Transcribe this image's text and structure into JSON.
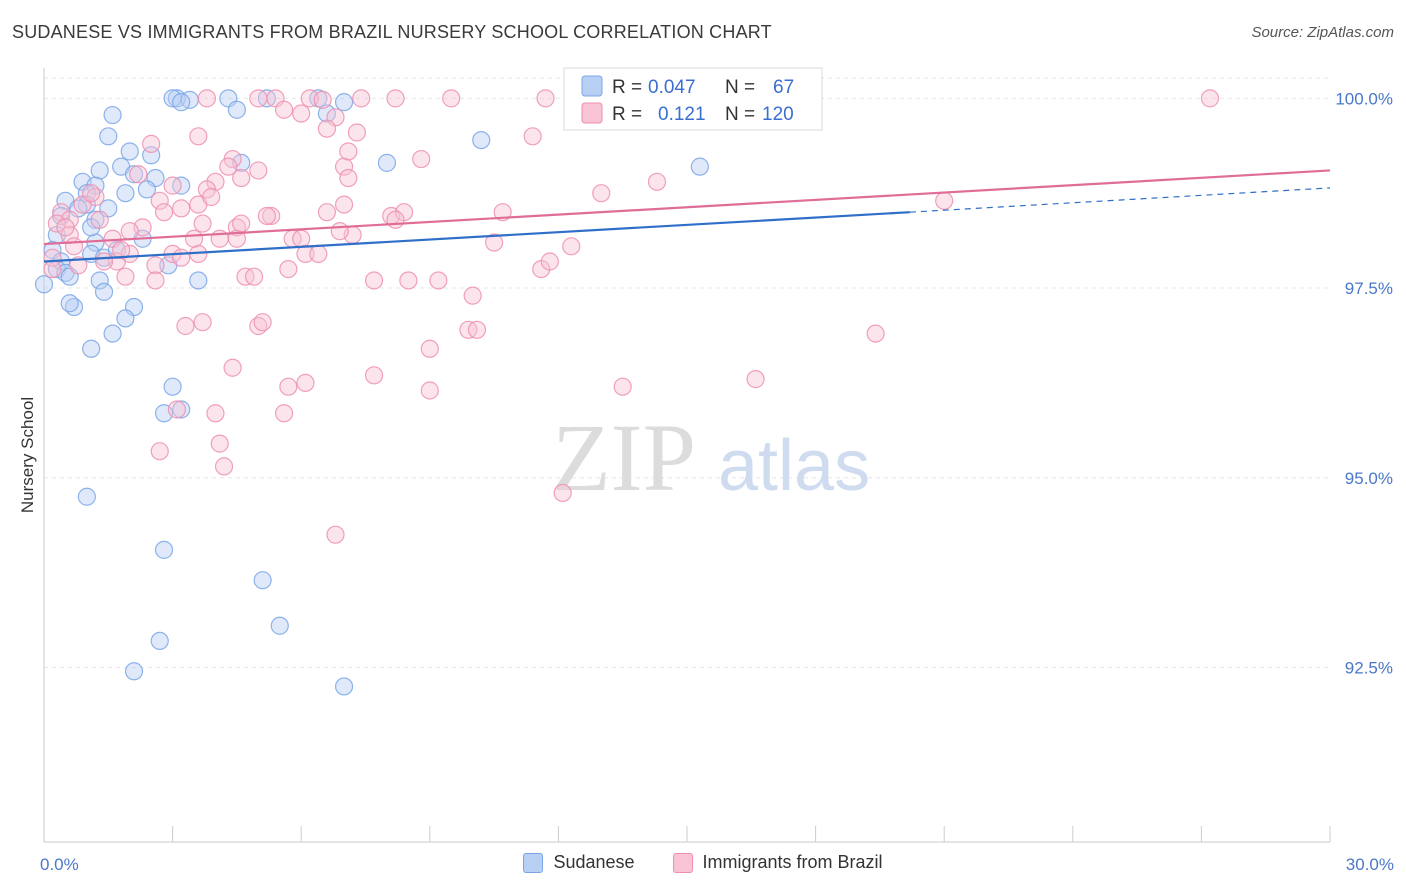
{
  "header": {
    "title": "SUDANESE VS IMMIGRANTS FROM BRAZIL NURSERY SCHOOL CORRELATION CHART",
    "source": "Source: ZipAtlas.com"
  },
  "watermark": {
    "zip": "ZIP",
    "atlas": "atlas"
  },
  "chart_data": {
    "type": "scatter",
    "title": "SUDANESE VS IMMIGRANTS FROM BRAZIL NURSERY SCHOOL CORRELATION CHART",
    "ylabel": "Nursery School",
    "xlabel": "",
    "xlim": [
      0,
      30
    ],
    "ylim": [
      90.2,
      100.4
    ],
    "x_ticks": [
      {
        "value": 0,
        "label": "0.0%"
      },
      {
        "value": 30,
        "label": "30.0%"
      }
    ],
    "y_ticks": [
      {
        "value": 100.0,
        "label": "100.0%"
      },
      {
        "value": 97.5,
        "label": "97.5%"
      },
      {
        "value": 95.0,
        "label": "95.0%"
      },
      {
        "value": 92.5,
        "label": "92.5%"
      }
    ],
    "grid": true,
    "legend_position": "top-center",
    "stats": [
      {
        "r_label": "R =",
        "r": "0.047",
        "n_label": "N =",
        "n": "67"
      },
      {
        "r_label": "R =",
        "r": "0.121",
        "n_label": "N =",
        "n": "120"
      }
    ],
    "series": [
      {
        "name": "Sudanese",
        "color": "#7aa6e8",
        "fill": "#b7cff3",
        "trend_color": "#2f6fc9",
        "trend": {
          "x0": 0,
          "y0": 97.85,
          "x1": 20.2,
          "y1": 98.5,
          "dash_x1": 30,
          "dash_y1": 98.82
        },
        "points": [
          [
            3.1,
            100.0
          ],
          [
            3.0,
            100.0
          ],
          [
            3.4,
            99.98
          ],
          [
            3.2,
            99.95
          ],
          [
            4.3,
            100.0
          ],
          [
            4.5,
            99.85
          ],
          [
            5.2,
            100.0
          ],
          [
            6.4,
            100.0
          ],
          [
            7.0,
            99.95
          ],
          [
            6.6,
            99.8
          ],
          [
            1.6,
            99.78
          ],
          [
            1.5,
            99.5
          ],
          [
            2.0,
            99.3
          ],
          [
            2.5,
            99.25
          ],
          [
            1.8,
            99.1
          ],
          [
            2.6,
            98.95
          ],
          [
            1.3,
            99.05
          ],
          [
            0.9,
            98.9
          ],
          [
            1.2,
            98.85
          ],
          [
            2.4,
            98.8
          ],
          [
            1.0,
            98.75
          ],
          [
            0.5,
            98.65
          ],
          [
            1.0,
            98.6
          ],
          [
            0.8,
            98.55
          ],
          [
            1.5,
            98.55
          ],
          [
            1.9,
            98.75
          ],
          [
            0.4,
            98.45
          ],
          [
            1.2,
            98.4
          ],
          [
            0.3,
            98.2
          ],
          [
            1.2,
            98.1
          ],
          [
            2.3,
            98.15
          ],
          [
            0.2,
            98.0
          ],
          [
            1.1,
            97.95
          ],
          [
            0.4,
            97.85
          ],
          [
            1.4,
            97.9
          ],
          [
            0.3,
            97.75
          ],
          [
            0.5,
            97.7
          ],
          [
            0.6,
            97.65
          ],
          [
            1.3,
            97.6
          ],
          [
            0.0,
            97.55
          ],
          [
            1.4,
            97.45
          ],
          [
            0.7,
            97.25
          ],
          [
            0.6,
            97.3
          ],
          [
            2.1,
            97.25
          ],
          [
            1.9,
            97.1
          ],
          [
            1.6,
            96.9
          ],
          [
            1.1,
            96.7
          ],
          [
            3.0,
            96.2
          ],
          [
            2.8,
            95.85
          ],
          [
            3.2,
            95.9
          ],
          [
            1.0,
            94.75
          ],
          [
            2.8,
            94.05
          ],
          [
            5.1,
            93.65
          ],
          [
            5.5,
            93.05
          ],
          [
            2.7,
            92.85
          ],
          [
            2.1,
            92.45
          ],
          [
            7.0,
            92.25
          ],
          [
            10.2,
            99.45
          ],
          [
            15.3,
            99.1
          ],
          [
            8.0,
            99.15
          ],
          [
            4.6,
            99.15
          ],
          [
            3.2,
            98.85
          ],
          [
            2.1,
            99.0
          ],
          [
            1.1,
            98.3
          ],
          [
            1.7,
            98.0
          ],
          [
            2.9,
            97.8
          ],
          [
            3.6,
            97.6
          ]
        ]
      },
      {
        "name": "Immigrants from Brazil",
        "color": "#ee8fb0",
        "fill": "#f7c3d5",
        "trend_color": "#e06d98",
        "trend": {
          "x0": 0,
          "y0": 98.08,
          "x1": 30,
          "y1": 99.05
        },
        "points": [
          [
            3.8,
            100.0
          ],
          [
            5.0,
            100.0
          ],
          [
            5.4,
            100.0
          ],
          [
            6.2,
            100.0
          ],
          [
            6.5,
            99.98
          ],
          [
            7.4,
            100.0
          ],
          [
            8.2,
            100.0
          ],
          [
            9.5,
            100.0
          ],
          [
            11.7,
            100.0
          ],
          [
            12.9,
            100.0
          ],
          [
            16.2,
            100.0
          ],
          [
            27.2,
            100.0
          ],
          [
            5.6,
            99.85
          ],
          [
            6.0,
            99.8
          ],
          [
            6.8,
            99.75
          ],
          [
            6.6,
            99.6
          ],
          [
            7.3,
            99.55
          ],
          [
            3.6,
            99.5
          ],
          [
            2.5,
            99.4
          ],
          [
            11.4,
            99.5
          ],
          [
            4.4,
            99.2
          ],
          [
            8.8,
            99.2
          ],
          [
            7.0,
            99.1
          ],
          [
            4.6,
            98.95
          ],
          [
            2.2,
            99.0
          ],
          [
            3.0,
            98.85
          ],
          [
            4.0,
            98.9
          ],
          [
            3.8,
            98.8
          ],
          [
            13.0,
            98.75
          ],
          [
            14.3,
            98.9
          ],
          [
            2.7,
            98.65
          ],
          [
            3.6,
            98.6
          ],
          [
            7.0,
            98.6
          ],
          [
            6.6,
            98.5
          ],
          [
            8.1,
            98.45
          ],
          [
            10.7,
            98.5
          ],
          [
            21.0,
            98.65
          ],
          [
            1.2,
            98.7
          ],
          [
            0.9,
            98.6
          ],
          [
            0.4,
            98.5
          ],
          [
            0.6,
            98.4
          ],
          [
            1.3,
            98.4
          ],
          [
            2.3,
            98.3
          ],
          [
            2.0,
            98.25
          ],
          [
            3.7,
            98.35
          ],
          [
            5.3,
            98.45
          ],
          [
            4.5,
            98.3
          ],
          [
            5.8,
            98.15
          ],
          [
            0.6,
            98.2
          ],
          [
            1.6,
            98.15
          ],
          [
            4.1,
            98.15
          ],
          [
            4.5,
            98.15
          ],
          [
            6.0,
            98.15
          ],
          [
            7.2,
            98.2
          ],
          [
            10.5,
            98.1
          ],
          [
            0.2,
            97.9
          ],
          [
            1.7,
            97.85
          ],
          [
            2.0,
            97.95
          ],
          [
            3.0,
            97.95
          ],
          [
            3.2,
            97.9
          ],
          [
            3.6,
            97.95
          ],
          [
            6.1,
            97.95
          ],
          [
            0.8,
            97.8
          ],
          [
            0.2,
            97.75
          ],
          [
            2.6,
            97.8
          ],
          [
            5.7,
            97.75
          ],
          [
            11.6,
            97.75
          ],
          [
            1.9,
            97.65
          ],
          [
            4.7,
            97.65
          ],
          [
            4.9,
            97.65
          ],
          [
            7.7,
            97.6
          ],
          [
            8.5,
            97.6
          ],
          [
            10.0,
            97.4
          ],
          [
            3.7,
            97.05
          ],
          [
            3.3,
            97.0
          ],
          [
            5.0,
            97.0
          ],
          [
            5.1,
            97.05
          ],
          [
            9.0,
            96.7
          ],
          [
            9.9,
            96.95
          ],
          [
            19.4,
            96.9
          ],
          [
            6.1,
            96.25
          ],
          [
            5.7,
            96.2
          ],
          [
            4.4,
            96.45
          ],
          [
            7.7,
            96.35
          ],
          [
            9.0,
            96.15
          ],
          [
            13.5,
            96.2
          ],
          [
            16.6,
            96.3
          ],
          [
            3.1,
            95.9
          ],
          [
            5.6,
            95.85
          ],
          [
            4.0,
            95.85
          ],
          [
            4.1,
            95.45
          ],
          [
            2.7,
            95.35
          ],
          [
            4.2,
            95.15
          ],
          [
            12.1,
            94.8
          ],
          [
            6.8,
            94.25
          ],
          [
            7.1,
            98.95
          ],
          [
            8.4,
            98.5
          ],
          [
            11.8,
            97.85
          ],
          [
            0.3,
            98.35
          ],
          [
            0.5,
            98.3
          ],
          [
            2.8,
            98.5
          ],
          [
            1.1,
            98.75
          ],
          [
            3.2,
            98.55
          ],
          [
            5.0,
            99.05
          ],
          [
            4.6,
            98.35
          ],
          [
            3.5,
            98.15
          ],
          [
            2.6,
            97.6
          ],
          [
            1.8,
            98.0
          ],
          [
            5.2,
            98.45
          ],
          [
            6.4,
            97.95
          ],
          [
            0.7,
            98.05
          ],
          [
            12.3,
            98.05
          ],
          [
            6.9,
            98.25
          ],
          [
            8.2,
            98.4
          ],
          [
            9.2,
            97.6
          ],
          [
            10.1,
            96.95
          ],
          [
            7.1,
            99.3
          ],
          [
            4.3,
            99.1
          ],
          [
            3.9,
            98.7
          ],
          [
            1.4,
            97.85
          ]
        ]
      }
    ]
  }
}
